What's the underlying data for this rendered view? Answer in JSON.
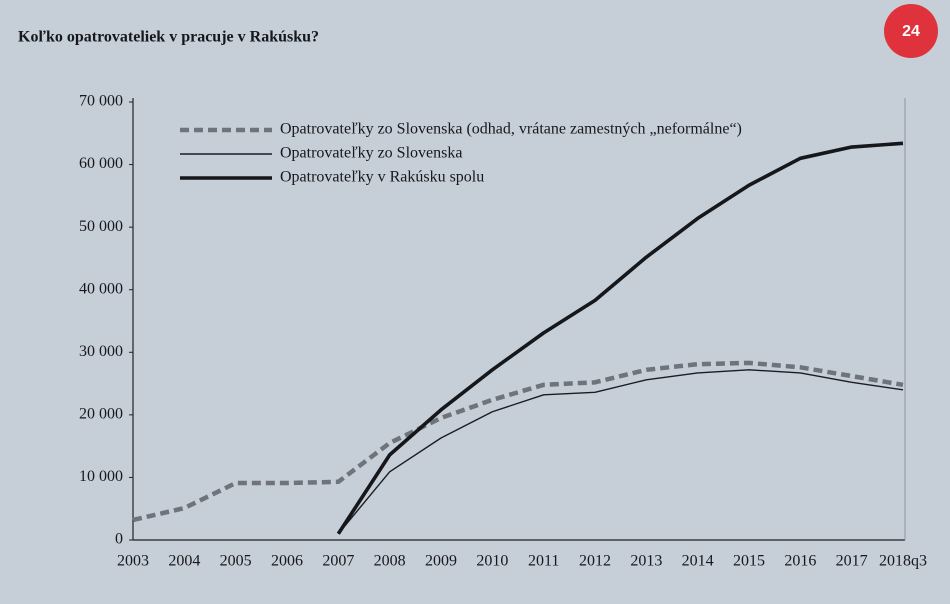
{
  "chart_data": {
    "type": "line",
    "title": "Koľko opatrovateliek v pracuje v Rakúsku?",
    "logo": "24",
    "categories": [
      "2003",
      "2004",
      "2005",
      "2006",
      "2007",
      "2008",
      "2009",
      "2010",
      "2011",
      "2012",
      "2013",
      "2014",
      "2015",
      "2016",
      "2017",
      "2018q3"
    ],
    "series": [
      {
        "name": "Opatrovateľky zo Slovenska (odhad, vrátane zamestných „neformálne“)",
        "color": "#6f737a",
        "style": "dashed",
        "values": [
          3200,
          5100,
          9100,
          9100,
          9300,
          15500,
          19500,
          22400,
          24800,
          25200,
          27200,
          28100,
          28300,
          27600,
          26200,
          24800
        ]
      },
      {
        "name": "Opatrovateľky zo Slovenska",
        "color": "#1b1d22",
        "style": "thin",
        "values": [
          null,
          null,
          null,
          null,
          1000,
          10900,
          16300,
          20500,
          23200,
          23600,
          25600,
          26700,
          27200,
          26700,
          25200,
          24000
        ]
      },
      {
        "name": "Opatrovateľky v Rakúsku spolu",
        "color": "#15171b",
        "style": "thick",
        "values": [
          null,
          null,
          null,
          null,
          1000,
          13600,
          20800,
          27200,
          33100,
          38300,
          45200,
          51400,
          56700,
          61000,
          62800,
          63400
        ]
      }
    ],
    "ylim": [
      0,
      70000
    ],
    "yticks": [
      0,
      {
        "value": 10000,
        "label": "10 000"
      },
      {
        "value": 20000,
        "label": "20 000"
      },
      {
        "value": 30000,
        "label": "30 000"
      },
      {
        "value": 40000,
        "label": "40 000"
      },
      {
        "value": 50000,
        "label": "50 000"
      },
      {
        "value": 60000,
        "label": "60 000"
      },
      {
        "value": 70000,
        "label": "70 000"
      }
    ],
    "legend": "upper left"
  }
}
